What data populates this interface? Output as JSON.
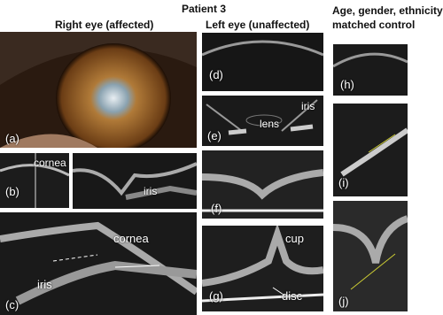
{
  "header": {
    "title": "Patient 3",
    "columns": [
      "Right eye (affected)",
      "Left eye (unaffected)",
      "Age, gender, ethnicity",
      "matched control"
    ]
  },
  "panels": [
    {
      "label": "(a)"
    },
    {
      "label": "(b)",
      "annotations": [
        "cornea"
      ]
    },
    {
      "annotations": [
        "iris"
      ]
    },
    {
      "label": "(c)",
      "annotations": [
        "cornea",
        "iris"
      ]
    },
    {
      "label": "(d)"
    },
    {
      "label": "(e)",
      "annotations": [
        "lens",
        "iris"
      ]
    },
    {
      "label": "(f)"
    },
    {
      "label": "(g)",
      "annotations": [
        "cup",
        "disc"
      ]
    },
    {
      "label": "(h)"
    },
    {
      "label": "(i)"
    },
    {
      "label": "(j)"
    }
  ]
}
